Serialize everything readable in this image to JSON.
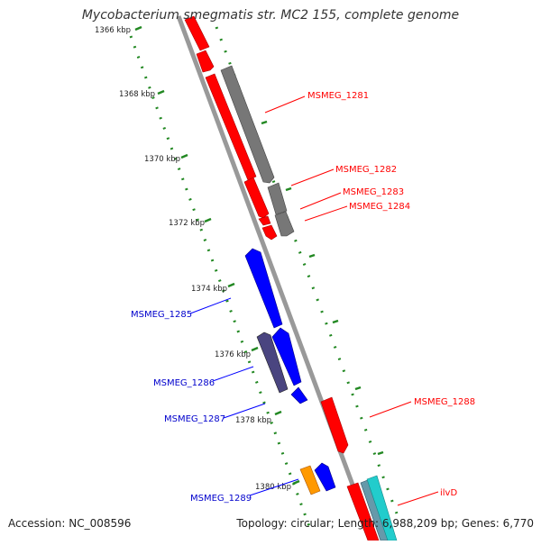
{
  "title": "Mycobacterium smegmatis str. MC2 155, complete genome",
  "footer": {
    "accession": "Accession: NC_008596",
    "topology": "Topology: circular; Length: 6,988,209 bp; Genes: 6,770"
  },
  "ruler_labels": [
    "1366 kbp",
    "1368 kbp",
    "1370 kbp",
    "1372 kbp",
    "1374 kbp",
    "1376 kbp",
    "1378 kbp",
    "1380 kbp"
  ],
  "gene_labels": {
    "msmeg_1281": "MSMEG_1281",
    "msmeg_1282": "MSMEG_1282",
    "msmeg_1283": "MSMEG_1283",
    "msmeg_1284": "MSMEG_1284",
    "msmeg_1285": "MSMEG_1285",
    "msmeg_1286": "MSMEG_1286",
    "msmeg_1287": "MSMEG_1287",
    "msmeg_1288": "MSMEG_1288",
    "msmeg_1289": "MSMEG_1289",
    "ilvd": "ilvD"
  },
  "colors": {
    "forward_gene": "#ff0000",
    "reverse_gene": "#0000ff",
    "rna_gene": "#666666",
    "dark_gene": "#4a4580",
    "orange_gene": "#ff9900",
    "cyan_gene": "#22cccc",
    "ruler_tick": "#228822",
    "backbone": "#888888"
  }
}
